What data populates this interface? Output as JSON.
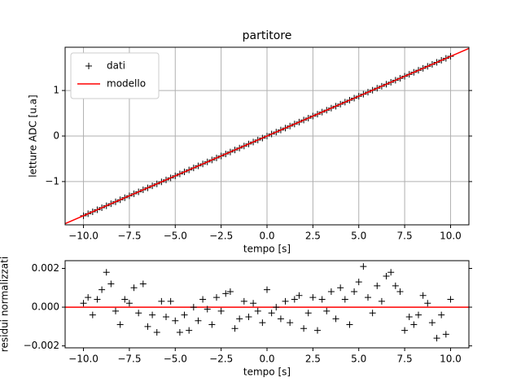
{
  "chart_data": [
    {
      "type": "scatter",
      "title": "partitore",
      "xlabel": "tempo [s]",
      "ylabel": "letture ADC [u.a]",
      "xlim": [
        -11,
        11
      ],
      "ylim": [
        -1.95,
        1.95
      ],
      "xticks": [
        {
          "value": -10,
          "label": "−10.0"
        },
        {
          "value": -7.5,
          "label": "−7.5"
        },
        {
          "value": -5,
          "label": "−5.0"
        },
        {
          "value": -2.5,
          "label": "−2.5"
        },
        {
          "value": 0,
          "label": "0.0"
        },
        {
          "value": 2.5,
          "label": "2.5"
        },
        {
          "value": 5,
          "label": "5.0"
        },
        {
          "value": 7.5,
          "label": "7.5"
        },
        {
          "value": 10,
          "label": "10.0"
        }
      ],
      "yticks": [
        {
          "value": -1,
          "label": "−1"
        },
        0,
        1
      ],
      "grid": true,
      "legend": "upper left",
      "series": [
        {
          "name": "dati",
          "color": "#000000",
          "marker": "+",
          "x": [
            -10,
            -9.75,
            -9.5,
            -9.25,
            -9,
            -8.75,
            -8.5,
            -8.25,
            -8,
            -7.75,
            -7.5,
            -7.25,
            -7,
            -6.75,
            -6.5,
            -6.25,
            -6,
            -5.75,
            -5.5,
            -5.25,
            -5,
            -4.75,
            -4.5,
            -4.25,
            -4,
            -3.75,
            -3.5,
            -3.25,
            -3,
            -2.75,
            -2.5,
            -2.25,
            -2,
            -1.75,
            -1.5,
            -1.25,
            -1,
            -0.75,
            -0.5,
            -0.25,
            0,
            0.25,
            0.5,
            0.75,
            1,
            1.25,
            1.5,
            1.75,
            2,
            2.25,
            2.5,
            2.75,
            3,
            3.25,
            3.5,
            3.75,
            4,
            4.25,
            4.5,
            4.75,
            5,
            5.25,
            5.5,
            5.75,
            6,
            6.25,
            6.5,
            6.75,
            7,
            7.25,
            7.5,
            7.75,
            8,
            8.25,
            8.5,
            8.75,
            9,
            9.25,
            9.5,
            9.75,
            10
          ],
          "values": [
            -1.75,
            -1.706,
            -1.663,
            -1.619,
            -1.575,
            -1.531,
            -1.488,
            -1.444,
            -1.4,
            -1.356,
            -1.313,
            -1.269,
            -1.225,
            -1.181,
            -1.138,
            -1.094,
            -1.05,
            -1.006,
            -0.963,
            -0.919,
            -0.875,
            -0.831,
            -0.788,
            -0.744,
            -0.7,
            -0.656,
            -0.613,
            -0.569,
            -0.525,
            -0.481,
            -0.438,
            -0.394,
            -0.35,
            -0.306,
            -0.263,
            -0.219,
            -0.175,
            -0.131,
            -0.088,
            -0.044,
            0,
            0.044,
            0.088,
            0.131,
            0.175,
            0.219,
            0.263,
            0.306,
            0.35,
            0.394,
            0.438,
            0.481,
            0.525,
            0.569,
            0.613,
            0.656,
            0.7,
            0.744,
            0.788,
            0.831,
            0.875,
            0.919,
            0.963,
            1.006,
            1.05,
            1.094,
            1.138,
            1.181,
            1.225,
            1.269,
            1.313,
            1.356,
            1.4,
            1.444,
            1.488,
            1.531,
            1.575,
            1.619,
            1.663,
            1.706,
            1.75
          ]
        },
        {
          "name": "modello",
          "color": "#ff0000",
          "marker": "line",
          "x": [
            -11,
            11
          ],
          "values": [
            -1.925,
            1.925
          ]
        }
      ]
    },
    {
      "type": "scatter",
      "xlabel": "tempo [s]",
      "ylabel": "residui normalizzati",
      "xlim": [
        -11,
        11
      ],
      "ylim": [
        -0.0021,
        0.0024
      ],
      "xticks": [
        {
          "value": -10,
          "label": "−10.0"
        },
        {
          "value": -7.5,
          "label": "−7.5"
        },
        {
          "value": -5,
          "label": "−5.0"
        },
        {
          "value": -2.5,
          "label": "−2.5"
        },
        {
          "value": 0,
          "label": "0.0"
        },
        {
          "value": 2.5,
          "label": "2.5"
        },
        {
          "value": 5,
          "label": "5.0"
        },
        {
          "value": 7.5,
          "label": "7.5"
        },
        {
          "value": 10,
          "label": "10.0"
        }
      ],
      "yticks": [
        {
          "value": -0.002,
          "label": "−0.002"
        },
        {
          "value": 0,
          "label": "0.000"
        },
        {
          "value": 0.002,
          "label": "0.002"
        }
      ],
      "grid": false,
      "hline": 0,
      "hline_color": "#ff0000",
      "series": [
        {
          "color": "#000000",
          "marker": "+",
          "x": [
            -10,
            -9.75,
            -9.5,
            -9.25,
            -9,
            -8.75,
            -8.5,
            -8.25,
            -8,
            -7.75,
            -7.5,
            -7.25,
            -7,
            -6.75,
            -6.5,
            -6.25,
            -6,
            -5.75,
            -5.5,
            -5.25,
            -5,
            -4.75,
            -4.5,
            -4.25,
            -4,
            -3.75,
            -3.5,
            -3.25,
            -3,
            -2.75,
            -2.5,
            -2.25,
            -2,
            -1.75,
            -1.5,
            -1.25,
            -1,
            -0.75,
            -0.5,
            -0.25,
            0,
            0.25,
            0.5,
            0.75,
            1,
            1.25,
            1.5,
            1.75,
            2,
            2.25,
            2.5,
            2.75,
            3,
            3.25,
            3.5,
            3.75,
            4,
            4.25,
            4.5,
            4.75,
            5,
            5.25,
            5.5,
            5.75,
            6,
            6.25,
            6.5,
            6.75,
            7,
            7.25,
            7.5,
            7.75,
            8,
            8.25,
            8.5,
            8.75,
            9,
            9.25,
            9.5,
            9.75,
            10
          ],
          "values": [
            0.0002,
            0.0005,
            -0.0004,
            0.0004,
            0.0009,
            0.0018,
            0.0012,
            -0.0002,
            -0.0009,
            0.0004,
            0.0002,
            0.001,
            -0.0003,
            0.0012,
            -0.001,
            -0.0004,
            -0.0013,
            0.0003,
            -0.0005,
            0.0003,
            -0.0007,
            -0.0013,
            -0.0004,
            -0.0012,
            0,
            -0.0007,
            0.0004,
            -0.0001,
            -0.0009,
            0.0005,
            -0.0002,
            0.0007,
            0.0008,
            -0.0011,
            -0.0006,
            0.0003,
            -0.0005,
            0.0002,
            -0.0002,
            -0.0008,
            0.0009,
            -0.0003,
            0,
            -0.0006,
            0.0003,
            -0.0008,
            0.0004,
            0.0006,
            -0.0011,
            -0.0003,
            0.0005,
            -0.0012,
            0.0004,
            -0.0002,
            0.0008,
            -0.0006,
            0.001,
            0.0004,
            -0.0009,
            0.0008,
            0.0013,
            0.0021,
            0.0005,
            -0.0003,
            0.0011,
            0.0003,
            0.0016,
            0.0018,
            0.0011,
            0.0008,
            -0.0012,
            -0.0005,
            -0.0009,
            -0.0004,
            0.0006,
            0.0002,
            -0.0008,
            -0.0016,
            -0.0004,
            -0.0014,
            0.0004
          ]
        }
      ]
    }
  ]
}
